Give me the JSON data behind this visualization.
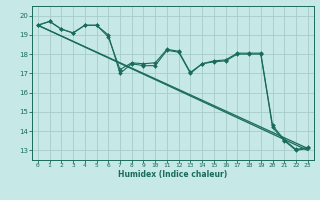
{
  "xlabel": "Humidex (Indice chaleur)",
  "bg_color": "#c6e8e6",
  "grid_color": "#a8cccc",
  "line_color": "#1a6b5a",
  "xlim": [
    -0.5,
    23.5
  ],
  "ylim": [
    12.5,
    20.5
  ],
  "xticks": [
    0,
    1,
    2,
    3,
    4,
    5,
    6,
    7,
    8,
    9,
    10,
    11,
    12,
    13,
    14,
    15,
    16,
    17,
    18,
    19,
    20,
    21,
    22,
    23
  ],
  "yticks": [
    13,
    14,
    15,
    16,
    17,
    18,
    19,
    20
  ],
  "line1_y": [
    19.5,
    19.7,
    19.3,
    19.1,
    19.5,
    19.5,
    19.0,
    17.0,
    17.5,
    17.4,
    17.4,
    18.2,
    18.1,
    17.0,
    17.5,
    17.6,
    17.65,
    18.0,
    18.0,
    18.0,
    14.2,
    13.5,
    13.0,
    13.1
  ],
  "line2_y": [
    19.5,
    19.7,
    19.3,
    19.1,
    19.5,
    19.5,
    18.9,
    17.2,
    17.55,
    17.5,
    17.55,
    18.25,
    18.15,
    17.05,
    17.5,
    17.65,
    17.7,
    18.05,
    18.05,
    18.05,
    14.3,
    13.55,
    13.05,
    13.15
  ],
  "line3_y_start": 19.5,
  "line3_y_end": 13.0,
  "line4_y_start": 19.5,
  "line4_y_end": 13.1
}
